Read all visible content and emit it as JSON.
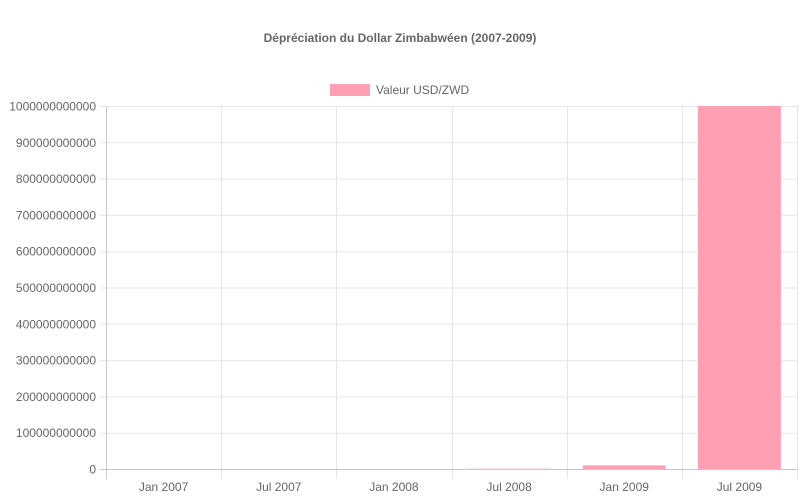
{
  "chart_data": {
    "type": "bar",
    "title": "Dépréciation du Dollar Zimbabwéen (2007-2009)",
    "xlabel": "",
    "ylabel": "",
    "categories": [
      "Jan 2007",
      "Jul 2007",
      "Jan 2008",
      "Jul 2008",
      "Jan 2009",
      "Jul 2009"
    ],
    "series": [
      {
        "name": "Valeur USD/ZWD",
        "values": [
          30000,
          300000,
          25000000,
          650000000,
          10000000000,
          1000000000000
        ],
        "color": "#ff9fb3"
      }
    ],
    "ylim": [
      0,
      1000000000000
    ],
    "yticks": [
      0,
      100000000000,
      200000000000,
      300000000000,
      400000000000,
      500000000000,
      600000000000,
      700000000000,
      800000000000,
      900000000000,
      1000000000000
    ],
    "grid": true,
    "legend_position": "top"
  },
  "colors": {
    "bar_fill": "#ff9fb3",
    "bar_stroke": "#ff6384",
    "grid": "#e6e6e6",
    "axis": "#c8c8c8",
    "text": "#666666"
  }
}
